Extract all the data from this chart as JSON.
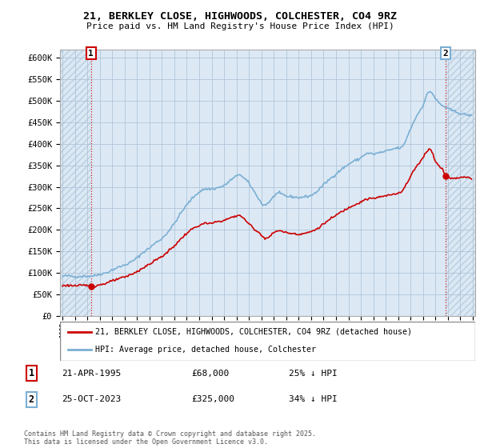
{
  "title": "21, BERKLEY CLOSE, HIGHWOODS, COLCHESTER, CO4 9RZ",
  "subtitle": "Price paid vs. HM Land Registry's House Price Index (HPI)",
  "background_color": "#ffffff",
  "plot_bg_color": "#dce9f5",
  "hatch_color": "#b8cfe0",
  "grid_color": "#b0c4d8",
  "hpi_color": "#7bafd4",
  "price_color": "#cc0000",
  "ylim": [
    0,
    620000
  ],
  "yticks": [
    0,
    50000,
    100000,
    150000,
    200000,
    250000,
    300000,
    350000,
    400000,
    450000,
    500000,
    550000,
    600000
  ],
  "ytick_labels": [
    "£0",
    "£50K",
    "£100K",
    "£150K",
    "£200K",
    "£250K",
    "£300K",
    "£350K",
    "£400K",
    "£450K",
    "£500K",
    "£550K",
    "£600K"
  ],
  "transaction1_date": "21-APR-1995",
  "transaction1_price": 68000,
  "transaction1_hpi_pct": "25% ↓ HPI",
  "transaction2_date": "25-OCT-2023",
  "transaction2_price": 325000,
  "transaction2_hpi_pct": "34% ↓ HPI",
  "legend_line1": "21, BERKLEY CLOSE, HIGHWOODS, COLCHESTER, CO4 9RZ (detached house)",
  "legend_line2": "HPI: Average price, detached house, Colchester",
  "footnote": "Contains HM Land Registry data © Crown copyright and database right 2025.\nThis data is licensed under the Open Government Licence v3.0.",
  "marker1_year": 1995.3,
  "marker1_price": 68000,
  "marker2_year": 2023.8,
  "marker2_price": 325000,
  "xlim_start": 1992.8,
  "xlim_end": 2026.2,
  "hatch_end_year": 1995.3
}
